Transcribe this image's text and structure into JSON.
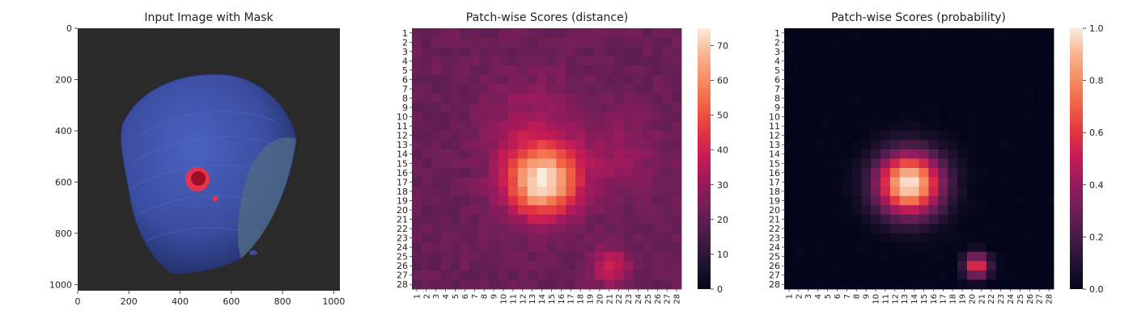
{
  "chart_data": [
    {
      "type": "image",
      "title": "Input Image with Mask",
      "xticks": [
        0,
        200,
        400,
        600,
        800,
        1000
      ],
      "yticks": [
        0,
        200,
        400,
        600,
        800,
        1000
      ],
      "xlim": [
        0,
        1024
      ],
      "ylim": [
        1024,
        0
      ],
      "background_color": "#2b2a2a",
      "object_color": "#3a4da0",
      "mask_color": "#e8324e"
    },
    {
      "type": "heatmap",
      "title": "Patch-wise Scores (distance)",
      "rows": 28,
      "cols": 28,
      "xticklabels": [
        "1",
        "2",
        "3",
        "4",
        "5",
        "6",
        "7",
        "8",
        "9",
        "10",
        "11",
        "12",
        "13",
        "14",
        "15",
        "16",
        "17",
        "18",
        "19",
        "20",
        "21",
        "22",
        "23",
        "24",
        "25",
        "26",
        "27",
        "28"
      ],
      "yticklabels": [
        "1",
        "2",
        "3",
        "4",
        "5",
        "6",
        "7",
        "8",
        "9",
        "10",
        "11",
        "12",
        "13",
        "14",
        "15",
        "16",
        "17",
        "18",
        "19",
        "20",
        "21",
        "22",
        "23",
        "24",
        "25",
        "26",
        "27",
        "28"
      ],
      "colorbar": {
        "min": 0,
        "max": 75,
        "ticks": [
          0,
          10,
          20,
          30,
          40,
          50,
          60,
          70
        ]
      },
      "base_value": 22,
      "hotspots": [
        {
          "row": 17,
          "col": 14,
          "peak": 52,
          "radius": 2.6
        },
        {
          "row": 11,
          "col": 13,
          "peak": 10,
          "radius": 3.5
        },
        {
          "row": 26,
          "col": 21,
          "peak": 20,
          "radius": 1.3
        },
        {
          "row": 14,
          "col": 22,
          "peak": 8,
          "radius": 3
        }
      ]
    },
    {
      "type": "heatmap",
      "title": "Patch-wise Scores (probability)",
      "rows": 28,
      "cols": 28,
      "xticklabels": [
        "1",
        "2",
        "3",
        "4",
        "5",
        "6",
        "7",
        "8",
        "9",
        "10",
        "11",
        "12",
        "13",
        "14",
        "15",
        "16",
        "17",
        "18",
        "19",
        "20",
        "21",
        "22",
        "23",
        "24",
        "25",
        "26",
        "27",
        "28"
      ],
      "yticklabels": [
        "1",
        "2",
        "3",
        "4",
        "5",
        "6",
        "7",
        "8",
        "9",
        "10",
        "11",
        "12",
        "13",
        "14",
        "15",
        "16",
        "17",
        "18",
        "19",
        "20",
        "21",
        "22",
        "23",
        "24",
        "25",
        "26",
        "27",
        "28"
      ],
      "colorbar": {
        "min": 0.0,
        "max": 1.0,
        "ticks": [
          "0.0",
          "0.2",
          "0.4",
          "0.6",
          "0.8",
          "1.0"
        ]
      },
      "base_value": 0.0,
      "hotspots": [
        {
          "row": 17.2,
          "col": 13.5,
          "peak": 1.0,
          "radius": 2.4
        },
        {
          "row": 26,
          "col": 20.5,
          "peak": 0.65,
          "radius": 0.9
        }
      ]
    }
  ]
}
